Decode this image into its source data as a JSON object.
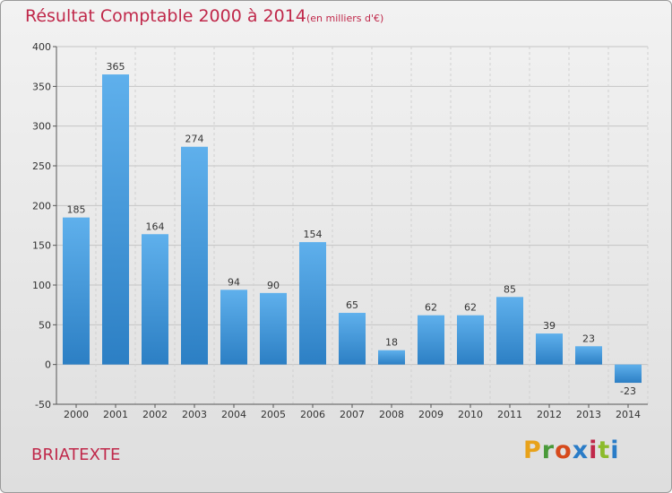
{
  "title": "Résultat Comptable 2000 à 2014",
  "subtitle": "(en milliers d'€)",
  "place": "BRIATEXTE",
  "brand": "Proxiti",
  "colors": {
    "accent": "#c0284a",
    "bar_top": "#5fb0ec",
    "bar_bottom": "#2c7fc4"
  },
  "chart_data": {
    "type": "bar",
    "title": "Résultat Comptable 2000 à 2014",
    "subtitle": "(en milliers d'€)",
    "xlabel": "",
    "ylabel": "",
    "ylim": [
      -50,
      400
    ],
    "yticks": [
      -50,
      0,
      50,
      100,
      150,
      200,
      250,
      300,
      350,
      400
    ],
    "grid": true,
    "categories": [
      "2000",
      "2001",
      "2002",
      "2003",
      "2004",
      "2005",
      "2006",
      "2007",
      "2008",
      "2009",
      "2010",
      "2011",
      "2012",
      "2013",
      "2014"
    ],
    "values": [
      185,
      365,
      164,
      274,
      94,
      90,
      154,
      65,
      18,
      62,
      62,
      85,
      39,
      23,
      -23
    ]
  }
}
